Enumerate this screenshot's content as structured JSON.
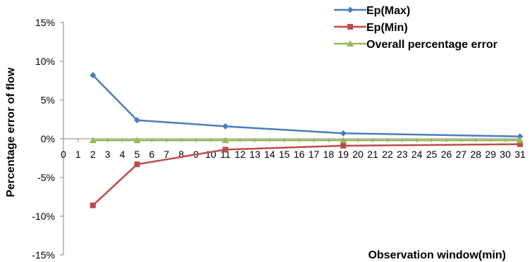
{
  "chart_data": {
    "type": "line",
    "xlabel": "Observation window(min)",
    "ylabel": "Percentage error of flow",
    "xlim": [
      0,
      31
    ],
    "ylim": [
      -0.15,
      0.15
    ],
    "x_ticks": [
      0,
      1,
      2,
      3,
      4,
      5,
      6,
      7,
      8,
      9,
      10,
      11,
      12,
      13,
      14,
      15,
      16,
      17,
      18,
      19,
      20,
      21,
      22,
      23,
      24,
      25,
      26,
      27,
      28,
      29,
      30,
      31
    ],
    "y_ticks": [
      {
        "value": 0.15,
        "label": "15%"
      },
      {
        "value": 0.1,
        "label": "10%"
      },
      {
        "value": 0.05,
        "label": "5%"
      },
      {
        "value": 0.0,
        "label": "0%"
      },
      {
        "value": -0.05,
        "label": "-5%"
      },
      {
        "value": -0.1,
        "label": "-10%"
      },
      {
        "value": -0.15,
        "label": "-15%"
      }
    ],
    "grid": false,
    "legend_position": "top-right",
    "series": [
      {
        "name": "Ep(Max)",
        "color": "#4a7ebb",
        "marker": "diamond",
        "x": [
          2,
          5,
          11,
          19,
          31
        ],
        "y": [
          0.082,
          0.024,
          0.016,
          0.007,
          0.003
        ]
      },
      {
        "name": "Ep(Min)",
        "color": "#be4b48",
        "marker": "square",
        "x": [
          2,
          5,
          11,
          19,
          31
        ],
        "y": [
          -0.086,
          -0.033,
          -0.014,
          -0.009,
          -0.007
        ]
      },
      {
        "name": "Overall percentage error",
        "color": "#98b954",
        "marker": "triangle",
        "x": [
          2,
          5,
          11,
          19,
          31
        ],
        "y": [
          -0.002,
          -0.002,
          -0.002,
          -0.002,
          -0.002
        ]
      }
    ]
  }
}
